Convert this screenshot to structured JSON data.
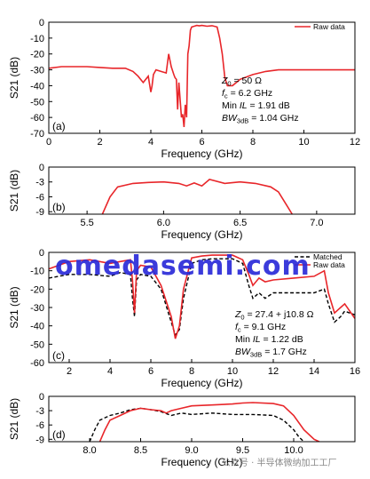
{
  "chart_data": [
    {
      "type": "line",
      "panel_label": "(a)",
      "xlabel": "Frequency (GHz)",
      "ylabel": "S21 (dB)",
      "xlim": [
        0,
        12
      ],
      "ylim": [
        -70,
        0
      ],
      "xticks": [
        0,
        2,
        4,
        6,
        8,
        10,
        12
      ],
      "yticks": [
        0,
        -10,
        -20,
        -30,
        -40,
        -50,
        -60,
        -70
      ],
      "grid": false,
      "legend": {
        "placement": "top-right",
        "entries": [
          "Raw data"
        ]
      },
      "annotation_lines": [
        {
          "pre": "Z",
          "sub": "0",
          "post": " = 50 Ω",
          "italic_pre": true
        },
        {
          "pre": "f",
          "sub": "c",
          "post": " = 6.2 GHz",
          "italic_pre": true
        },
        {
          "pre": "Min ",
          "ital": "IL",
          "post": " = 1.91 dB"
        },
        {
          "pre": "BW",
          "sub": "3dB",
          "post": " = 1.04 GHz",
          "italic_pre": true
        }
      ],
      "series": [
        {
          "name": "Raw data",
          "color": "#e8262a",
          "x": [
            0,
            0.5,
            1,
            1.5,
            2,
            2.5,
            3,
            3.3,
            3.5,
            3.7,
            3.9,
            4.0,
            4.05,
            4.1,
            4.2,
            4.4,
            4.6,
            4.7,
            4.8,
            4.9,
            4.95,
            5.0,
            5.05,
            5.1,
            5.2,
            5.25,
            5.3,
            5.35,
            5.4,
            5.45,
            5.5,
            5.55,
            5.6,
            5.7,
            5.8,
            5.9,
            6.0,
            6.2,
            6.4,
            6.6,
            6.7,
            6.8,
            6.9,
            7.0,
            7.2,
            7.5,
            8,
            8.5,
            9,
            9.5,
            10,
            10.5,
            11,
            11.5,
            12
          ],
          "y": [
            -29,
            -28,
            -28,
            -28,
            -28.5,
            -29,
            -29,
            -31,
            -34,
            -38,
            -34,
            -44,
            -40,
            -33,
            -30,
            -31,
            -32,
            -20,
            -28,
            -33,
            -35,
            -36,
            -55,
            -38,
            -60,
            -58,
            -66,
            -52,
            -60,
            -20,
            -15,
            -5,
            -3,
            -2.5,
            -2,
            -2.3,
            -2,
            -2.5,
            -2.2,
            -3,
            -10,
            -20,
            -35,
            -40,
            -40,
            -36,
            -33,
            -31,
            -30,
            -30,
            -30,
            -30,
            -30,
            -30,
            -30
          ]
        }
      ]
    },
    {
      "type": "line",
      "panel_label": "(b)",
      "xlabel": "Frequency (GHz)",
      "ylabel": "S21 (dB)",
      "xlim": [
        5.25,
        7.25
      ],
      "ylim": [
        -9.5,
        0
      ],
      "xticks": [
        5.5,
        6.0,
        6.5,
        7.0
      ],
      "xtick_labels": [
        "5.5",
        "6.0",
        "6.5",
        "7.0"
      ],
      "yticks": [
        0,
        -3,
        -6,
        -9
      ],
      "grid": false,
      "series": [
        {
          "name": "Raw data",
          "color": "#e8262a",
          "x": [
            5.6,
            5.65,
            5.7,
            5.8,
            5.9,
            6.0,
            6.1,
            6.15,
            6.2,
            6.25,
            6.3,
            6.4,
            6.5,
            6.6,
            6.7,
            6.75,
            6.8,
            6.84
          ],
          "y": [
            -9.5,
            -6,
            -4,
            -3.3,
            -3.1,
            -3.0,
            -3.3,
            -3.8,
            -3.2,
            -3.8,
            -2.5,
            -3.3,
            -3.0,
            -3.3,
            -4.0,
            -5,
            -7.5,
            -9.5
          ]
        }
      ]
    },
    {
      "type": "line",
      "panel_label": "(c)",
      "xlabel": "Frequency (GHz)",
      "ylabel": "S21 (dB)",
      "xlim": [
        1,
        16
      ],
      "ylim": [
        -60,
        0
      ],
      "xticks": [
        2,
        4,
        6,
        8,
        10,
        12,
        14,
        16
      ],
      "yticks": [
        0,
        -10,
        -20,
        -30,
        -40,
        -50,
        -60
      ],
      "grid": false,
      "legend": {
        "placement": "top-right",
        "entries": [
          "Matched",
          "Raw data"
        ]
      },
      "annotation_lines": [
        {
          "pre": "Z",
          "sub": "0",
          "post": " = 27.4 + j10.8 Ω",
          "italic_pre": true
        },
        {
          "pre": "f",
          "sub": "c",
          "post": " = 9.1 GHz",
          "italic_pre": true
        },
        {
          "pre": "Min ",
          "ital": "IL",
          "post": " = 1.22 dB"
        },
        {
          "pre": "BW",
          "sub": "3dB",
          "post": " = 1.7 GHz",
          "italic_pre": true
        }
      ],
      "series": [
        {
          "name": "Matched",
          "color": "#000000",
          "dashed": true,
          "x": [
            1,
            2,
            3,
            4,
            4.5,
            5,
            5.1,
            5.2,
            5.3,
            5.5,
            6,
            6.5,
            7,
            7.2,
            7.4,
            7.6,
            8,
            8.5,
            9,
            10,
            10.5,
            10.8,
            11,
            11.3,
            11.6,
            12,
            13,
            14,
            14.5,
            14.7,
            15,
            15.3,
            15.5,
            16
          ],
          "y": [
            -14,
            -12,
            -12,
            -13,
            -11,
            -12,
            -25,
            -35,
            -15,
            -12,
            -13,
            -20,
            -38,
            -45,
            -42,
            -25,
            -6,
            -4,
            -3.5,
            -3.5,
            -6,
            -18,
            -25,
            -22,
            -25,
            -22,
            -22,
            -22,
            -20,
            -28,
            -38,
            -35,
            -32,
            -34
          ]
        },
        {
          "name": "Raw data",
          "color": "#e8262a",
          "x": [
            1,
            2,
            3,
            4,
            4.5,
            5,
            5.1,
            5.2,
            5.3,
            5.5,
            6,
            6.5,
            7,
            7.2,
            7.4,
            7.6,
            8,
            8.5,
            9,
            10,
            10.5,
            10.8,
            11,
            11.3,
            11.6,
            12,
            13,
            14,
            14.5,
            14.7,
            15,
            15.3,
            15.5,
            16
          ],
          "y": [
            -9,
            -5,
            -4,
            -6,
            -5,
            -4,
            -15,
            -33,
            -10,
            -7,
            -8,
            -18,
            -35,
            -47,
            -40,
            -20,
            -3,
            -2,
            -1.5,
            -1.5,
            -4,
            -12,
            -18,
            -14,
            -16,
            -15,
            -14,
            -13,
            -10,
            -22,
            -33,
            -30,
            -28,
            -36
          ]
        }
      ]
    },
    {
      "type": "line",
      "panel_label": "(d)",
      "xlabel": "Frequency (GHz)",
      "ylabel": "S21 (dB)",
      "xlim": [
        7.6,
        10.6
      ],
      "ylim": [
        -9.5,
        0
      ],
      "xticks": [
        8.0,
        8.5,
        9.0,
        9.5,
        10.0
      ],
      "xtick_labels": [
        "8.0",
        "8.5",
        "9.0",
        "9.5",
        "10.0"
      ],
      "yticks": [
        0,
        -3,
        -6,
        -9
      ],
      "grid": false,
      "series": [
        {
          "name": "Matched",
          "color": "#000000",
          "dashed": true,
          "x": [
            8.0,
            8.05,
            8.1,
            8.2,
            8.3,
            8.4,
            8.5,
            8.6,
            8.7,
            8.8,
            8.9,
            9.0,
            9.2,
            9.4,
            9.6,
            9.8,
            9.9,
            10.0,
            10.05,
            10.1
          ],
          "y": [
            -9.5,
            -7,
            -5,
            -4,
            -3.5,
            -2.8,
            -2.5,
            -2.8,
            -3.2,
            -4,
            -3.5,
            -3.8,
            -3.5,
            -3.8,
            -3.8,
            -4,
            -5,
            -7,
            -8.5,
            -9.5
          ]
        },
        {
          "name": "Raw data",
          "color": "#e8262a",
          "x": [
            8.1,
            8.15,
            8.2,
            8.3,
            8.4,
            8.5,
            8.6,
            8.7,
            8.75,
            8.8,
            8.9,
            9.0,
            9.2,
            9.4,
            9.5,
            9.6,
            9.8,
            9.9,
            10.0,
            10.1,
            10.2,
            10.25
          ],
          "y": [
            -9.5,
            -7,
            -5,
            -4,
            -3,
            -2.5,
            -2.8,
            -3.0,
            -3.5,
            -3.0,
            -2.5,
            -2.0,
            -1.8,
            -1.6,
            -1.4,
            -1.3,
            -1.5,
            -2.0,
            -4,
            -7,
            -9,
            -9.5
          ]
        }
      ]
    }
  ],
  "watermark": {
    "text": "omedasemi.com",
    "caption": "公众号 · 半导体微纳加工工厂"
  }
}
